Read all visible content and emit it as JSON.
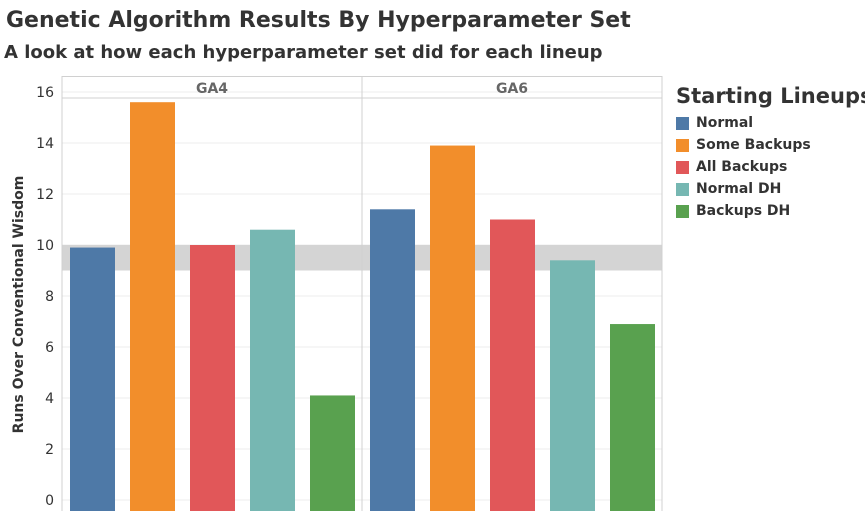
{
  "chart_data": {
    "type": "bar",
    "title": "Genetic Algorithm Results By Hyperparameter Set",
    "subtitle": "A look at how each hyperparameter set did for each lineup",
    "ylabel": "Runs Over Conventional Wisdom",
    "ylim": [
      0,
      16.5
    ],
    "yticks": [
      0,
      2,
      4,
      6,
      8,
      10,
      12,
      14,
      16
    ],
    "reference_band": [
      9,
      10
    ],
    "grid": true,
    "legend_title": "Starting Lineups",
    "legend_position": "right",
    "categories": [
      "Normal",
      "Some Backups",
      "All Backups",
      "Normal DH",
      "Backups DH"
    ],
    "colors": [
      "#4e79a7",
      "#f28e2b",
      "#e15759",
      "#76b7b2",
      "#59a14f"
    ],
    "panels": [
      {
        "name": "GA4",
        "values": [
          9.9,
          15.6,
          10.0,
          10.6,
          4.1
        ]
      },
      {
        "name": "GA6",
        "values": [
          11.4,
          13.9,
          11.0,
          9.4,
          6.9
        ]
      }
    ]
  }
}
